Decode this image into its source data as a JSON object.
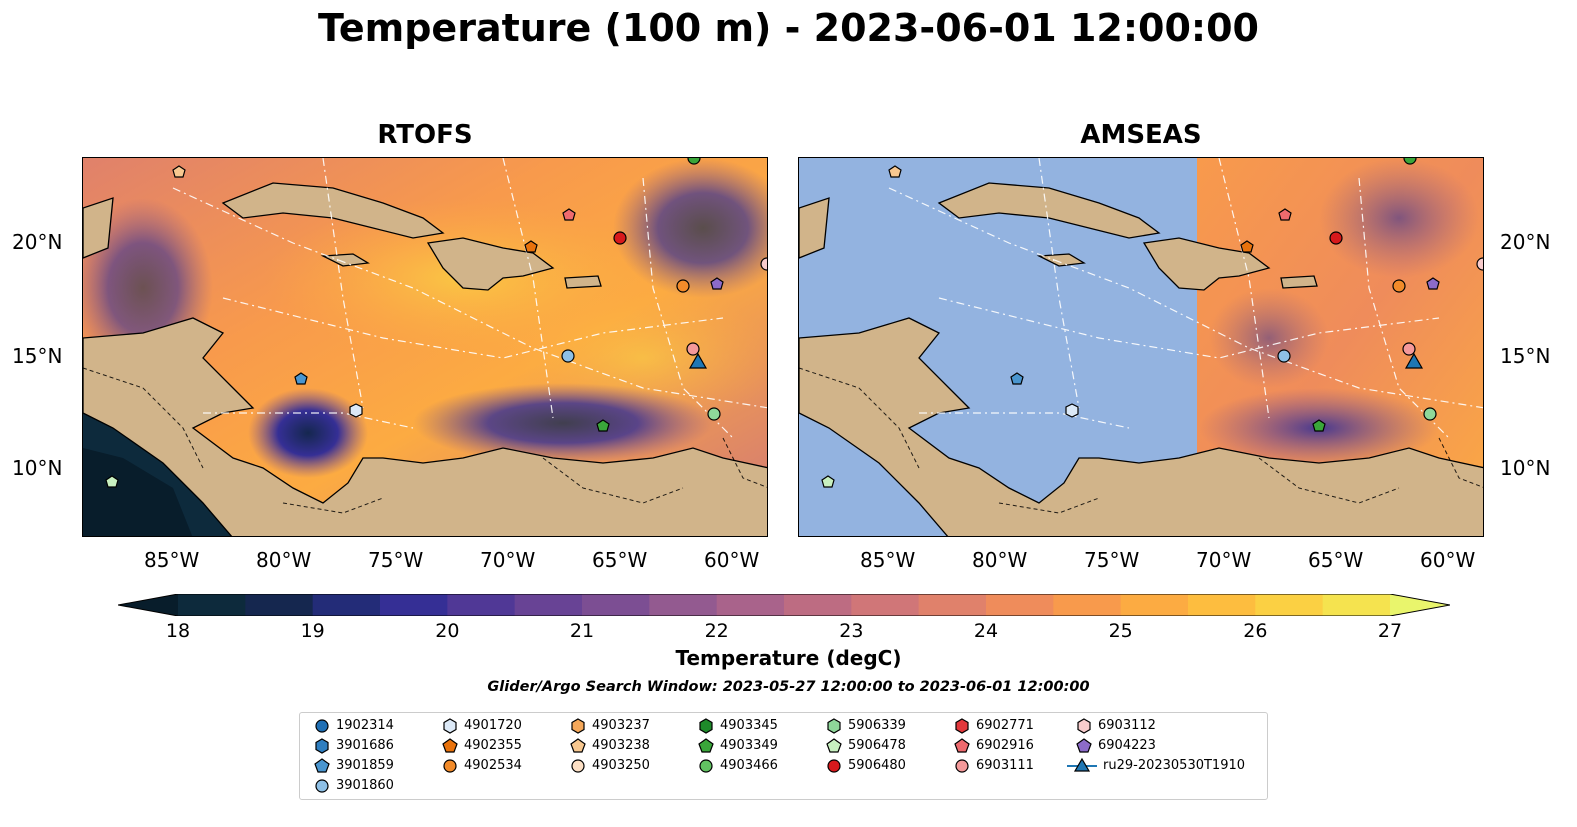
{
  "title": "Temperature (100 m) - 2023-06-01 12:00:00",
  "panels": [
    {
      "title": "RTOFS"
    },
    {
      "title": "AMSEAS"
    }
  ],
  "x_ticks": [
    "85°W",
    "80°W",
    "75°W",
    "70°W",
    "65°W",
    "60°W"
  ],
  "y_ticks": [
    "20°N",
    "15°N",
    "10°N"
  ],
  "colorbar": {
    "label": "Temperature (degC)",
    "ticks": [
      "18",
      "19",
      "20",
      "21",
      "22",
      "23",
      "24",
      "25",
      "26",
      "27"
    ],
    "colors": [
      "#0d2a3c",
      "#15274f",
      "#232c78",
      "#352f95",
      "#503896",
      "#684395",
      "#7c4e93",
      "#935a90",
      "#a9638b",
      "#bd6c82",
      "#d07678",
      "#e0816b",
      "#ef8c5b",
      "#f89a4c",
      "#fcab42",
      "#fdbd3f",
      "#fbd043",
      "#f5e34f"
    ],
    "under_color": "#081d2b",
    "over_color": "#e9f56c"
  },
  "search_window": "Glider/Argo Search Window: 2023-05-27 12:00:00 to 2023-06-01 12:00:00",
  "legend": [
    {
      "label": "1902314",
      "marker": "circle",
      "color": "#1f6fb4"
    },
    {
      "label": "3901686",
      "marker": "hexagon",
      "color": "#2e7ec0"
    },
    {
      "label": "3901859",
      "marker": "pentagon",
      "color": "#4a96d0"
    },
    {
      "label": "3901860",
      "marker": "circle",
      "color": "#8ec0e6"
    },
    {
      "label": "4901720",
      "marker": "hexagon",
      "color": "#dce9f7"
    },
    {
      "label": "4902355",
      "marker": "pentagon",
      "color": "#e8720c"
    },
    {
      "label": "4902534",
      "marker": "circle",
      "color": "#f28b2a"
    },
    {
      "label": "4903237",
      "marker": "hexagon",
      "color": "#f5a85a"
    },
    {
      "label": "4903238",
      "marker": "pentagon",
      "color": "#f8c890"
    },
    {
      "label": "4903250",
      "marker": "circle",
      "color": "#fde0c5"
    },
    {
      "label": "4903345",
      "marker": "hexagon",
      "color": "#1e8a2a"
    },
    {
      "label": "4903349",
      "marker": "pentagon",
      "color": "#3aa63a"
    },
    {
      "label": "4903466",
      "marker": "circle",
      "color": "#62c262"
    },
    {
      "label": "5906339",
      "marker": "hexagon",
      "color": "#8fd89a"
    },
    {
      "label": "5906478",
      "marker": "pentagon",
      "color": "#c8f0c0"
    },
    {
      "label": "5906480",
      "marker": "circle",
      "color": "#d7191c"
    },
    {
      "label": "6902771",
      "marker": "hexagon",
      "color": "#e3383c"
    },
    {
      "label": "6902916",
      "marker": "pentagon",
      "color": "#ee6a6e"
    },
    {
      "label": "6903111",
      "marker": "circle",
      "color": "#f4999a"
    },
    {
      "label": "6903112",
      "marker": "hexagon",
      "color": "#f8cccc"
    },
    {
      "label": "6904223",
      "marker": "pentagon",
      "color": "#8c6bc8"
    },
    {
      "label": "ru29-20230530T1910",
      "marker": "triangle-line",
      "color": "#1f77b4"
    }
  ]
}
